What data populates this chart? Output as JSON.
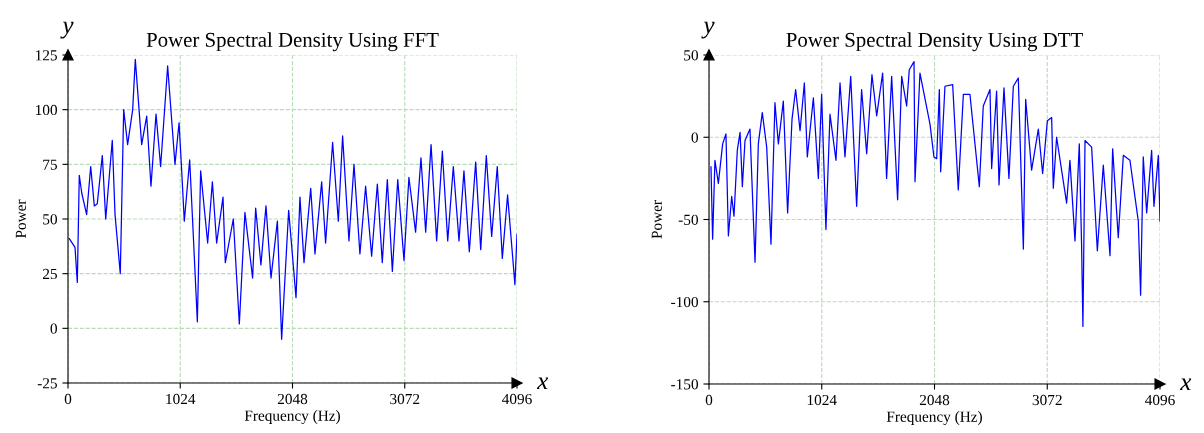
{
  "chart_data": [
    {
      "type": "line",
      "title": "Power Spectral Density Using FFT",
      "xlabel": "Frequency (Hz)",
      "ylabel": "Power",
      "annotations": [
        "y",
        "x"
      ],
      "xlim": [
        0,
        4096
      ],
      "xticks": [
        0,
        1024,
        2048,
        3072,
        4096
      ],
      "ylim": [
        -25,
        125
      ],
      "yticks": [
        -25,
        0,
        25,
        50,
        75,
        100,
        125
      ],
      "grid": true,
      "marker": "none",
      "line_style": "solid",
      "series": [
        {
          "color": "#0000ff",
          "x": [
            12,
            64,
            85,
            103,
            125,
            170,
            207,
            240,
            267,
            313,
            344,
            404,
            429,
            477,
            508,
            544,
            590,
            614,
            672,
            718,
            757,
            803,
            845,
            909,
            976,
            1013,
            1034,
            1061,
            1110,
            1137,
            1180,
            1210,
            1274,
            1317,
            1356,
            1414,
            1435,
            1508,
            1563,
            1614,
            1684,
            1712,
            1760,
            1806,
            1852,
            1910,
            1949,
            2013,
            2080,
            2116,
            2153,
            2214,
            2253,
            2314,
            2350,
            2414,
            2466,
            2505,
            2563,
            2609,
            2663,
            2715,
            2770,
            2822,
            2867,
            2913,
            2959,
            3008,
            3065,
            3110,
            3171,
            3220,
            3263,
            3312,
            3363,
            3415,
            3464,
            3515,
            3567,
            3612,
            3661,
            3719,
            3765,
            3816,
            3865,
            3916,
            3962,
            4010,
            4077,
            4096
          ],
          "values": [
            41,
            37,
            21,
            70,
            62,
            52,
            74,
            56,
            57,
            79,
            50,
            86,
            52,
            25,
            100,
            84,
            100,
            123,
            84,
            97,
            65,
            98,
            74,
            120,
            75,
            94,
            75,
            49,
            77,
            49,
            3,
            72,
            39,
            67,
            39,
            60,
            30,
            50,
            2,
            53,
            23,
            55,
            29,
            56,
            23,
            49,
            -5,
            54,
            14,
            60,
            30,
            64,
            34,
            67,
            39,
            85,
            49,
            88,
            40,
            75,
            34,
            65,
            33,
            66,
            30,
            68,
            26,
            68,
            31,
            69,
            44,
            78,
            44,
            84,
            40,
            81,
            40,
            74,
            40,
            72,
            35,
            76,
            36,
            79,
            42,
            74,
            32,
            61,
            20,
            43
          ]
        }
      ]
    },
    {
      "type": "line",
      "title": "Power Spectral Density Using DTT",
      "xlabel": "Frequency (Hz)",
      "ylabel": "Power",
      "annotations": [
        "y",
        "x"
      ],
      "xlim": [
        0,
        4096
      ],
      "xticks": [
        0,
        1024,
        2048,
        3072,
        4096
      ],
      "ylim": [
        -150,
        50
      ],
      "yticks": [
        -150,
        -100,
        -50,
        0,
        50
      ],
      "grid": true,
      "marker": "none",
      "line_style": "solid",
      "series": [
        {
          "color": "#0000ff",
          "x": [
            18,
            33,
            54,
            85,
            124,
            154,
            176,
            206,
            227,
            257,
            282,
            303,
            327,
            372,
            418,
            448,
            484,
            524,
            563,
            599,
            630,
            675,
            714,
            754,
            787,
            827,
            866,
            893,
            948,
            993,
            1023,
            1062,
            1099,
            1153,
            1190,
            1235,
            1287,
            1341,
            1386,
            1432,
            1480,
            1523,
            1577,
            1613,
            1659,
            1713,
            1750,
            1795,
            1819,
            1862,
            1871,
            1916,
            2007,
            2043,
            2068,
            2092,
            2104,
            2143,
            2213,
            2264,
            2310,
            2370,
            2455,
            2491,
            2552,
            2567,
            2612,
            2634,
            2679,
            2724,
            2764,
            2809,
            2855,
            2876,
            2930,
            2991,
            3030,
            3073,
            3112,
            3127,
            3157,
            3248,
            3278,
            3324,
            3363,
            3384,
            3396,
            3415,
            3475,
            3527,
            3581,
            3642,
            3666,
            3717,
            3763,
            3823,
            3899,
            3920,
            3944,
            3975,
            4020,
            4041,
            4081,
            4096
          ],
          "values": [
            -18,
            -62,
            -14,
            -28,
            -4,
            2,
            -60,
            -36,
            -48,
            -8,
            3,
            -30,
            -2,
            5,
            -76,
            -4,
            15,
            -6,
            -65,
            21,
            -4,
            22,
            -46,
            11,
            29,
            4,
            33,
            -12,
            24,
            -25,
            26,
            -56,
            14,
            -14,
            33,
            -12,
            37,
            -42,
            29,
            -10,
            38,
            13,
            39,
            -25,
            37,
            -38,
            37,
            19,
            41,
            46,
            -27,
            39,
            8,
            -12,
            -13,
            29,
            -21,
            31,
            32,
            -32,
            26,
            26,
            -30,
            19,
            29,
            -19,
            28,
            -29,
            30,
            -25,
            31,
            36,
            -68,
            23,
            -20,
            5,
            -22,
            10,
            12,
            -31,
            0,
            -40,
            -14,
            -63,
            -4,
            -66,
            -115,
            -2,
            -6,
            -69,
            -17,
            -72,
            -7,
            -61,
            -11,
            -14,
            -51,
            -96,
            -12,
            -46,
            -8,
            -42,
            -11,
            -51
          ]
        }
      ]
    }
  ]
}
